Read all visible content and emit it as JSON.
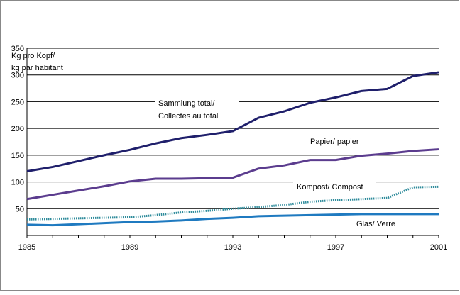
{
  "chart_data": {
    "type": "line",
    "ylabel_lines": [
      "Kg pro Kopf/",
      "kg par habitant"
    ],
    "x": [
      1985,
      1986,
      1987,
      1988,
      1989,
      1990,
      1991,
      1992,
      1993,
      1994,
      1995,
      1996,
      1997,
      1998,
      1999,
      2000,
      2001
    ],
    "xticks": [
      "1985",
      "1989",
      "1993",
      "1997",
      "2001"
    ],
    "yticks": [
      "50",
      "100",
      "150",
      "200",
      "250",
      "300",
      "350"
    ],
    "ylim": [
      0,
      350
    ],
    "xlim": [
      1985,
      2001
    ],
    "grid": "horizontal",
    "series": [
      {
        "name": "Sammlung total/ Collectes au total",
        "label_lines": [
          "Sammlung total/",
          "Collectes au total"
        ],
        "color": "#1F1F6B",
        "style": "solid",
        "values": [
          120,
          128,
          139,
          150,
          160,
          172,
          182,
          188,
          195,
          220,
          232,
          248,
          258,
          270,
          274,
          298,
          305
        ]
      },
      {
        "name": "Papier/ papier",
        "label_lines": [
          "Papier/ papier"
        ],
        "color": "#5B3C8E",
        "style": "solid",
        "values": [
          68,
          76,
          84,
          92,
          101,
          106,
          106,
          107,
          108,
          125,
          131,
          141,
          141,
          149,
          153,
          158,
          161
        ]
      },
      {
        "name": "Kompost/ Compost",
        "label_lines": [
          "Kompost/ Compost"
        ],
        "color": "#2E8B9B",
        "style": "dotted",
        "values": [
          30,
          31,
          32,
          33,
          34,
          38,
          43,
          46,
          50,
          53,
          57,
          63,
          66,
          68,
          70,
          90,
          91
        ]
      },
      {
        "name": "Glas/ Verre",
        "label_lines": [
          "Glas/ Verre"
        ],
        "color": "#1F7AC0",
        "style": "solid",
        "values": [
          20,
          19,
          21,
          23,
          25,
          26,
          28,
          31,
          33,
          36,
          37,
          38,
          39,
          40,
          40,
          40,
          40
        ]
      }
    ]
  }
}
